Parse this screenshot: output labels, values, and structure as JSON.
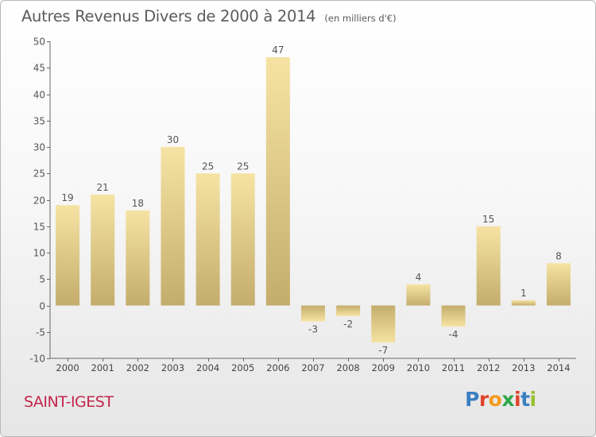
{
  "header": {
    "title": "Autres Revenus Divers de 2000 à 2014",
    "unit": "(en milliers d'€)"
  },
  "footer": {
    "commune": "SAINT-IGEST",
    "logo": [
      "P",
      "r",
      "o",
      "x",
      "i",
      "t",
      "i"
    ],
    "logo_colors": [
      "#3a7fc1",
      "#e0432b",
      "#f39a1e",
      "#2fa84a",
      "#e0432b",
      "#3a7fc1",
      "#9bbf2f"
    ]
  },
  "chart_data": {
    "type": "bar",
    "categories": [
      "2000",
      "2001",
      "2002",
      "2003",
      "2004",
      "2005",
      "2006",
      "2007",
      "2008",
      "2009",
      "2010",
      "2011",
      "2012",
      "2013",
      "2014"
    ],
    "values": [
      19,
      21,
      18,
      30,
      25,
      25,
      47,
      -3,
      -2,
      -7,
      4,
      -4,
      15,
      1,
      8
    ],
    "ylim": [
      -10,
      50
    ],
    "yticks": [
      -10,
      -5,
      0,
      5,
      10,
      15,
      20,
      25,
      30,
      35,
      40,
      45,
      50
    ],
    "grid": false,
    "legend": "none",
    "colors": {
      "bar_light": "#f6e3a3",
      "bar_dark": "#c4ad6c",
      "axis": "#666666",
      "text": "#555555"
    }
  }
}
